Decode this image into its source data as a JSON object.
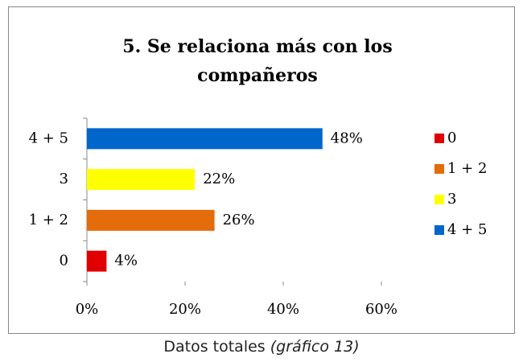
{
  "chart_data": {
    "type": "bar",
    "orientation": "horizontal",
    "title": "5. Se relaciona más con los compañeros",
    "categories": [
      "0",
      "1 + 2",
      "3",
      "4 + 5"
    ],
    "values": [
      4,
      26,
      22,
      48
    ],
    "value_labels": [
      "4%",
      "26%",
      "22%",
      "48%"
    ],
    "colors": [
      "#e00000",
      "#e46c0a",
      "#ffff00",
      "#0066cc"
    ],
    "xlim": [
      0,
      60
    ],
    "xticks": [
      {
        "value": 0,
        "label": "0%"
      },
      {
        "value": 20,
        "label": "20%"
      },
      {
        "value": 40,
        "label": "40%"
      },
      {
        "value": 60,
        "label": "60%"
      }
    ],
    "grid": false,
    "legend": "right"
  },
  "caption": {
    "text": "Datos totales",
    "source": "(gráfico 13)"
  }
}
